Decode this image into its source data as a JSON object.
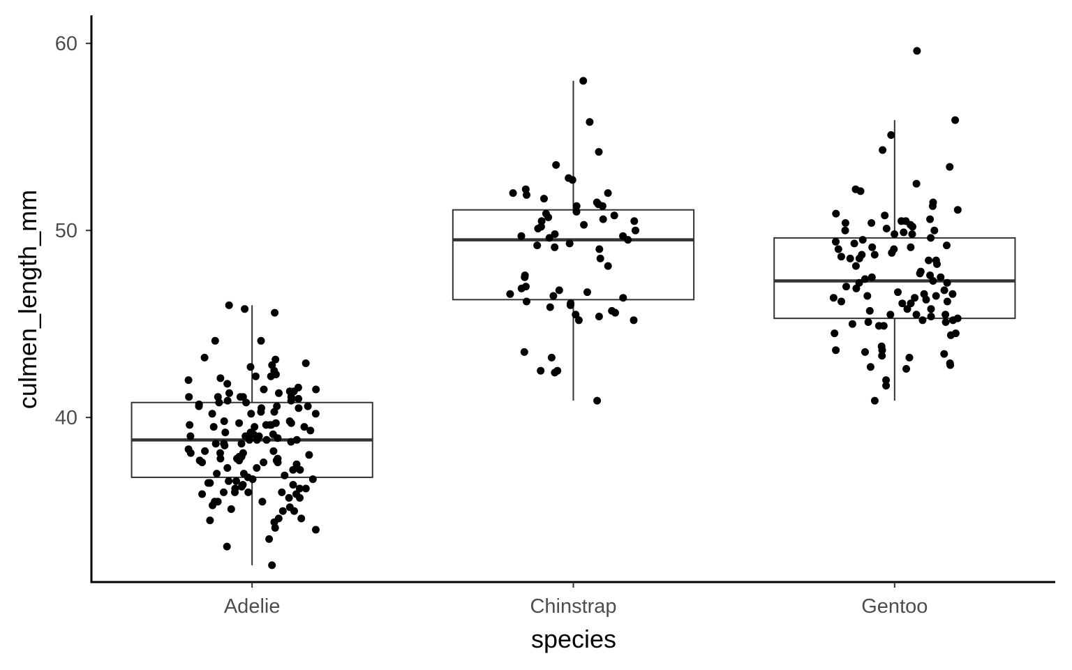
{
  "chart_data": {
    "type": "boxplot",
    "title": "",
    "xlabel": "species",
    "ylabel": "culmen_length_mm",
    "ylim": [
      31.2,
      61.5
    ],
    "yticks": [
      40,
      50,
      60
    ],
    "grid": false,
    "legend": "none",
    "categories": [
      "Adelie",
      "Chinstrap",
      "Gentoo"
    ],
    "boxes": [
      {
        "category": "Adelie",
        "whisker_low": 32.1,
        "q1": 36.8,
        "median": 38.8,
        "q3": 40.8,
        "whisker_high": 46.0
      },
      {
        "category": "Chinstrap",
        "whisker_low": 40.9,
        "q1": 46.3,
        "median": 49.5,
        "q3": 51.1,
        "whisker_high": 58.0
      },
      {
        "category": "Gentoo",
        "whisker_low": 40.9,
        "q1": 45.3,
        "median": 47.3,
        "q3": 49.6,
        "whisker_high": 55.9
      }
    ],
    "points": {
      "Adelie": [
        32.1,
        33.1,
        33.5,
        34.0,
        34.1,
        34.4,
        34.5,
        34.6,
        34.6,
        35.0,
        35.0,
        35.1,
        35.2,
        35.3,
        35.5,
        35.5,
        35.5,
        35.7,
        35.7,
        35.9,
        35.9,
        36.0,
        36.0,
        36.0,
        36.0,
        36.2,
        36.2,
        36.2,
        36.3,
        36.4,
        36.4,
        36.5,
        36.5,
        36.6,
        36.6,
        36.7,
        36.7,
        36.8,
        36.9,
        37.0,
        37.0,
        37.2,
        37.2,
        37.3,
        37.3,
        37.5,
        37.6,
        37.6,
        37.6,
        37.7,
        37.7,
        37.7,
        37.8,
        37.8,
        37.8,
        37.9,
        37.9,
        38.0,
        38.1,
        38.1,
        38.1,
        38.2,
        38.2,
        38.3,
        38.5,
        38.6,
        38.6,
        38.6,
        38.7,
        38.8,
        38.8,
        38.8,
        38.8,
        38.9,
        39.0,
        39.0,
        39.0,
        39.1,
        39.1,
        39.2,
        39.2,
        39.3,
        39.5,
        39.5,
        39.5,
        39.6,
        39.6,
        39.6,
        39.6,
        39.7,
        39.7,
        39.7,
        39.8,
        39.8,
        40.2,
        40.2,
        40.2,
        40.3,
        40.3,
        40.5,
        40.5,
        40.6,
        40.6,
        40.6,
        40.7,
        40.8,
        40.8,
        40.9,
        40.9,
        41.0,
        41.1,
        41.1,
        41.1,
        41.1,
        41.1,
        41.3,
        41.3,
        41.4,
        41.4,
        41.5,
        41.5,
        41.6,
        41.8,
        42.0,
        42.1,
        42.2,
        42.2,
        42.3,
        42.5,
        42.7,
        42.8,
        42.9,
        43.1,
        43.2,
        44.1,
        44.1,
        45.6,
        45.8,
        46.0
      ],
      "Chinstrap": [
        40.9,
        42.4,
        42.5,
        42.5,
        43.2,
        43.5,
        45.2,
        45.2,
        45.4,
        45.5,
        45.6,
        45.7,
        45.9,
        46.0,
        46.1,
        46.2,
        46.4,
        46.5,
        46.6,
        46.7,
        46.8,
        46.9,
        47.0,
        47.5,
        47.6,
        48.1,
        48.5,
        49.0,
        49.1,
        49.2,
        49.3,
        49.5,
        49.6,
        49.7,
        49.7,
        49.8,
        50.0,
        50.1,
        50.2,
        50.3,
        50.5,
        50.5,
        50.6,
        50.7,
        50.8,
        50.9,
        51.0,
        51.3,
        51.3,
        51.4,
        51.5,
        51.7,
        51.9,
        52.0,
        52.0,
        52.2,
        52.7,
        52.8,
        53.5,
        54.2,
        55.8,
        58.0
      ],
      "Gentoo": [
        40.9,
        41.7,
        42.0,
        42.6,
        42.7,
        42.8,
        42.9,
        43.2,
        43.3,
        43.4,
        43.5,
        43.6,
        43.6,
        43.8,
        44.4,
        44.5,
        44.5,
        44.9,
        44.9,
        45.0,
        45.1,
        45.1,
        45.2,
        45.2,
        45.3,
        45.4,
        45.5,
        45.5,
        45.5,
        45.7,
        45.8,
        45.8,
        46.1,
        46.1,
        46.2,
        46.2,
        46.3,
        46.4,
        46.4,
        46.5,
        46.5,
        46.6,
        46.6,
        46.7,
        46.8,
        46.9,
        47.0,
        47.2,
        47.2,
        47.3,
        47.4,
        47.5,
        47.5,
        47.6,
        47.7,
        47.8,
        48.1,
        48.2,
        48.4,
        48.4,
        48.5,
        48.5,
        48.6,
        48.7,
        48.7,
        48.8,
        49.0,
        49.0,
        49.1,
        49.1,
        49.2,
        49.3,
        49.4,
        49.5,
        49.6,
        49.8,
        49.8,
        49.9,
        50.0,
        50.0,
        50.1,
        50.2,
        50.3,
        50.4,
        50.4,
        50.5,
        50.5,
        50.6,
        50.8,
        50.9,
        51.1,
        51.3,
        51.5,
        52.1,
        52.2,
        52.5,
        53.4,
        54.3,
        55.1,
        55.9,
        59.6
      ]
    },
    "colors": {
      "points": "#000000",
      "box": "#333333",
      "axis": "#000000"
    }
  }
}
